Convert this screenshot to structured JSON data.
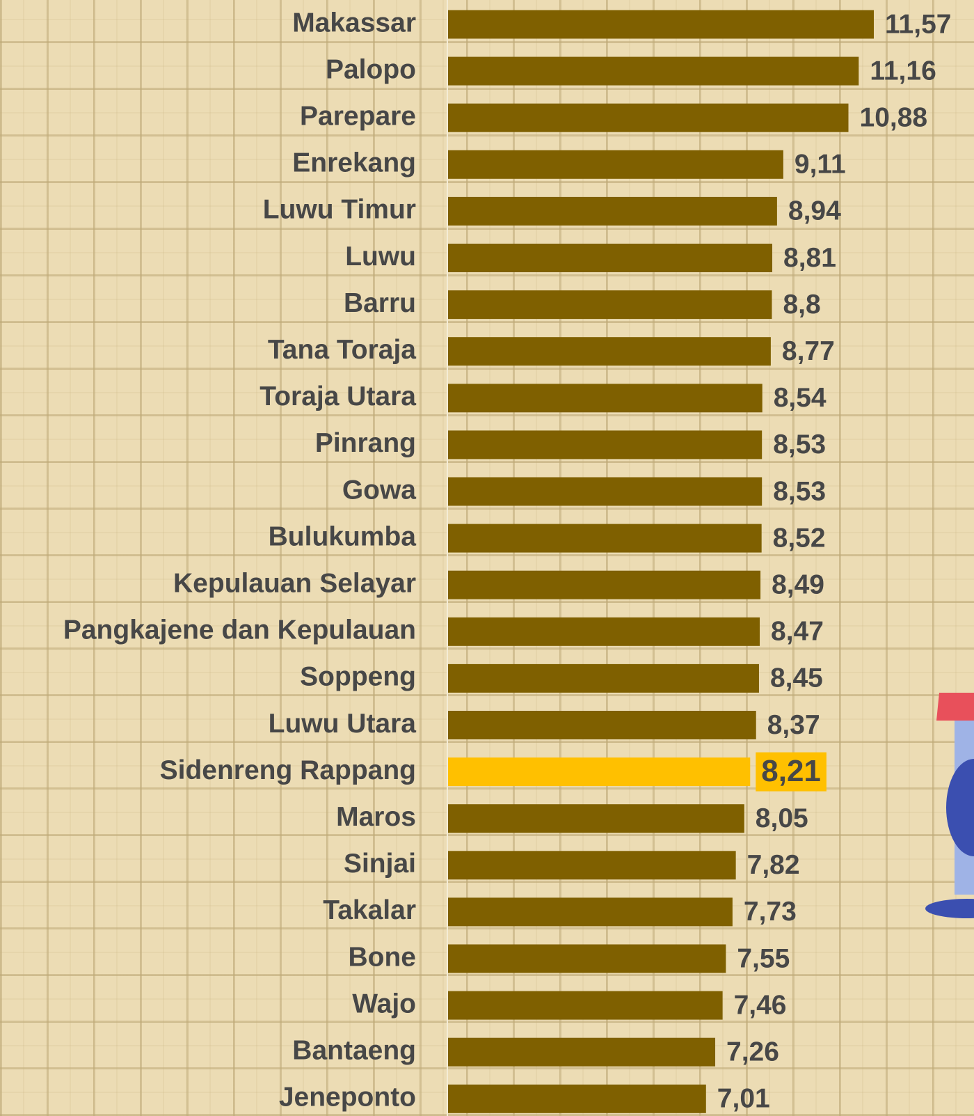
{
  "chart_data": {
    "type": "bar",
    "orientation": "horizontal",
    "categories": [
      "Makassar",
      "Palopo",
      "Parepare",
      "Enrekang",
      "Luwu Timur",
      "Luwu",
      "Barru",
      "Tana Toraja",
      "Toraja Utara",
      "Pinrang",
      "Gowa",
      "Bulukumba",
      "Kepulauan Selayar",
      "Pangkajene dan Kepulauan",
      "Soppeng",
      "Luwu Utara",
      "Sidenreng Rappang",
      "Maros",
      "Sinjai",
      "Takalar",
      "Bone",
      "Wajo",
      "Bantaeng",
      "Jeneponto"
    ],
    "values": [
      11.57,
      11.16,
      10.88,
      9.11,
      8.94,
      8.81,
      8.8,
      8.77,
      8.54,
      8.53,
      8.53,
      8.52,
      8.49,
      8.47,
      8.45,
      8.37,
      8.21,
      8.05,
      7.82,
      7.73,
      7.55,
      7.46,
      7.26,
      7.01
    ],
    "value_labels": [
      "11,57",
      "11,16",
      "10,88",
      "9,11",
      "8,94",
      "8,81",
      "8,8",
      "8,77",
      "8,54",
      "8,53",
      "8,53",
      "8,52",
      "8,49",
      "8,47",
      "8,45",
      "8,37",
      "8,21",
      "8,05",
      "7,82",
      "7,73",
      "7,55",
      "7,46",
      "7,26",
      "7,01"
    ],
    "colors": [
      "#7f6000",
      "#7f6000",
      "#7f6000",
      "#7f6000",
      "#7f6000",
      "#7f6000",
      "#7f6000",
      "#7f6000",
      "#7f6000",
      "#7f6000",
      "#7f6000",
      "#7f6000",
      "#7f6000",
      "#7f6000",
      "#7f6000",
      "#7f6000",
      "#ffc000",
      "#7f6000",
      "#7f6000",
      "#7f6000",
      "#7f6000",
      "#7f6000",
      "#7f6000",
      "#7f6000"
    ]
  }
}
